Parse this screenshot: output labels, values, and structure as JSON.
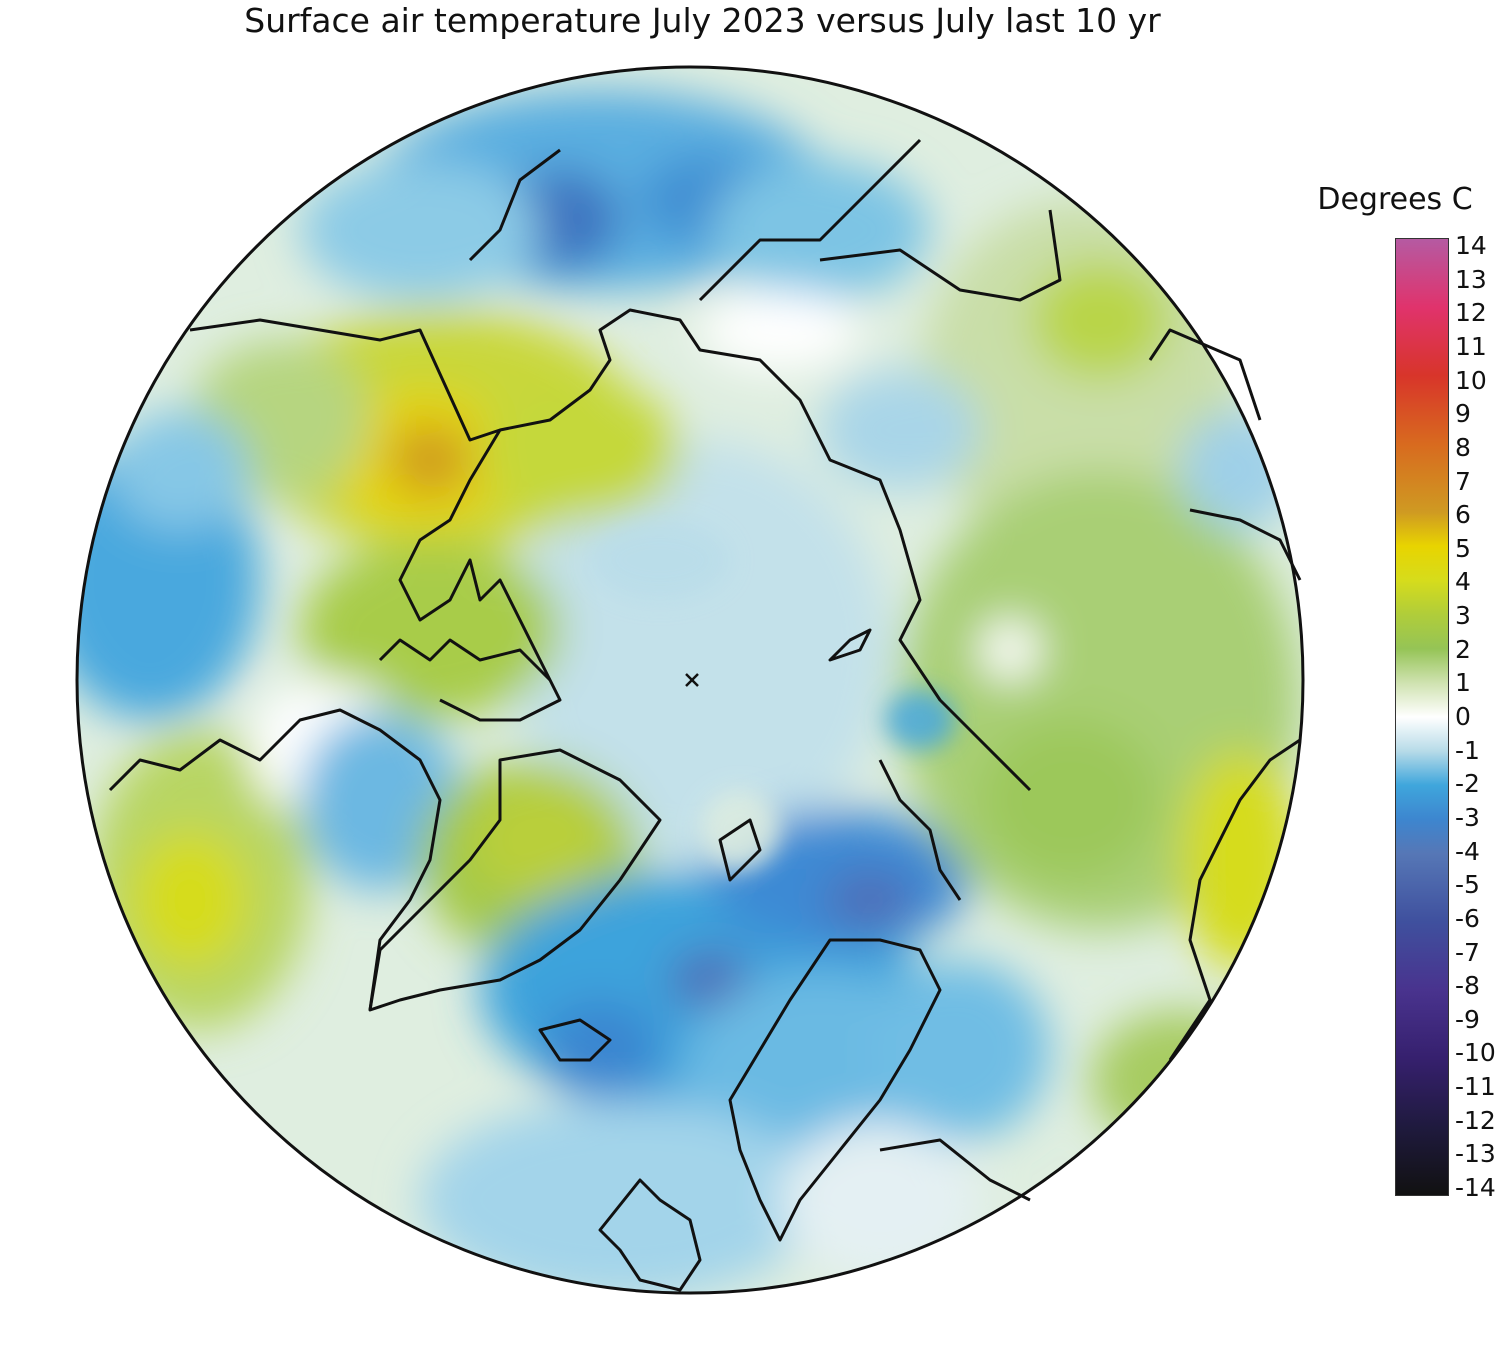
{
  "title": "Surface air temperature July 2023 versus July last 10 yr",
  "legend": {
    "title": "Degrees C",
    "min": -14,
    "max": 14,
    "ticks": [
      "14",
      "13",
      "12",
      "11",
      "10",
      "9",
      "8",
      "7",
      "6",
      "5",
      "4",
      "3",
      "2",
      "1",
      "0",
      "-1",
      "-2",
      "-3",
      "-4",
      "-5",
      "-6",
      "-7",
      "-8",
      "-9",
      "-10",
      "-11",
      "-12",
      "-13",
      "-14"
    ],
    "colors": {
      "14": "#b55aa2",
      "12": "#e0336c",
      "10": "#d8352a",
      "8": "#d86a1f",
      "6": "#cf9a22",
      "5": "#e8d400",
      "4": "#d6dc1c",
      "3": "#b0cd3a",
      "2": "#95c456",
      "1": "#cfe2b0",
      "0": "#ffffff",
      "-1": "#b7dbe8",
      "-2": "#3fa6dc",
      "-3": "#3d86cf",
      "-4": "#5677b6",
      "-6": "#3f509e",
      "-8": "#49338e",
      "-10": "#36206e",
      "-12": "#1f1a3e",
      "-14": "#111111"
    }
  },
  "map": {
    "projection": "polar stereographic, North Pole centered",
    "pole_marker": "x",
    "warm_anomaly_max_region_value": 6,
    "cold_anomaly_min_region_value": -5
  }
}
